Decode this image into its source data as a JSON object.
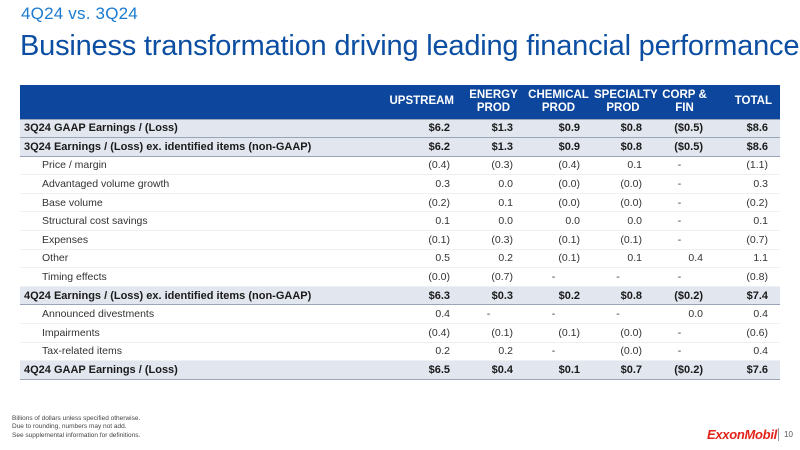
{
  "header": {
    "subtitle": "4Q24 vs. 3Q24",
    "title": "Business transformation driving leading financial performance"
  },
  "table": {
    "columns": [
      {
        "key": "up",
        "label": "UPSTREAM"
      },
      {
        "key": "en",
        "label": "ENERGY PROD"
      },
      {
        "key": "ch",
        "label": "CHEMICAL PROD"
      },
      {
        "key": "sp",
        "label": "SPECIALTY PROD"
      },
      {
        "key": "cf",
        "label": "CORP & FIN"
      },
      {
        "key": "tot",
        "label": "TOTAL"
      }
    ],
    "rows": [
      {
        "label": "3Q24 GAAP Earnings / (Loss)",
        "type": "total",
        "values": [
          "$6.2",
          "$1.3",
          "$0.9",
          "$0.8",
          "($0.5)",
          "$8.6"
        ]
      },
      {
        "label": "3Q24 Earnings / (Loss) ex. identified items (non-GAAP)",
        "type": "total",
        "values": [
          "$6.2",
          "$1.3",
          "$0.9",
          "$0.8",
          "($0.5)",
          "$8.6"
        ]
      },
      {
        "label": "Price / margin",
        "type": "detail",
        "values": [
          "(0.4)",
          "(0.3)",
          "(0.4)",
          "0.1",
          "-",
          "(1.1)"
        ]
      },
      {
        "label": "Advantaged volume growth",
        "type": "detail",
        "values": [
          "0.3",
          "0.0",
          "(0.0)",
          "(0.0)",
          "-",
          "0.3"
        ]
      },
      {
        "label": "Base volume",
        "type": "detail",
        "values": [
          "(0.2)",
          "0.1",
          "(0.0)",
          "(0.0)",
          "-",
          "(0.2)"
        ]
      },
      {
        "label": "Structural cost savings",
        "type": "detail",
        "values": [
          "0.1",
          "0.0",
          "0.0",
          "0.0",
          "-",
          "0.1"
        ]
      },
      {
        "label": "Expenses",
        "type": "detail",
        "values": [
          "(0.1)",
          "(0.3)",
          "(0.1)",
          "(0.1)",
          "-",
          "(0.7)"
        ]
      },
      {
        "label": "Other",
        "type": "detail",
        "values": [
          "0.5",
          "0.2",
          "(0.1)",
          "0.1",
          "0.4",
          "1.1"
        ]
      },
      {
        "label": "Timing effects",
        "type": "detail",
        "values": [
          "(0.0)",
          "(0.7)",
          "-",
          "-",
          "-",
          "(0.8)"
        ]
      },
      {
        "label": "4Q24 Earnings / (Loss) ex. identified items (non-GAAP)",
        "type": "total",
        "values": [
          "$6.3",
          "$0.3",
          "$0.2",
          "$0.8",
          "($0.2)",
          "$7.4"
        ]
      },
      {
        "label": "Announced divestments",
        "type": "detail",
        "values": [
          "0.4",
          "-",
          "-",
          "-",
          "0.0",
          "0.4"
        ]
      },
      {
        "label": "Impairments",
        "type": "detail",
        "values": [
          "(0.4)",
          "(0.1)",
          "(0.1)",
          "(0.0)",
          "-",
          "(0.6)"
        ]
      },
      {
        "label": "Tax-related items",
        "type": "detail",
        "values": [
          "0.2",
          "0.2",
          "-",
          "(0.0)",
          "-",
          "0.4"
        ]
      },
      {
        "label": "4Q24 GAAP Earnings / (Loss)",
        "type": "total",
        "values": [
          "$6.5",
          "$0.4",
          "$0.1",
          "$0.7",
          "($0.2)",
          "$7.6"
        ]
      }
    ]
  },
  "footer": {
    "notes": [
      "Billions of dollars unless specified otherwise.",
      "Due to rounding, numbers may not add.",
      "See supplemental information for definitions."
    ],
    "logo_text": "ExxonMobil",
    "page_number": "10"
  },
  "colors": {
    "header_bg": "#0c479d",
    "title": "#0b4ea2",
    "subtitle": "#1b7bd1",
    "total_row_bg": "#e1e6ef",
    "logo": "#e2231a"
  }
}
